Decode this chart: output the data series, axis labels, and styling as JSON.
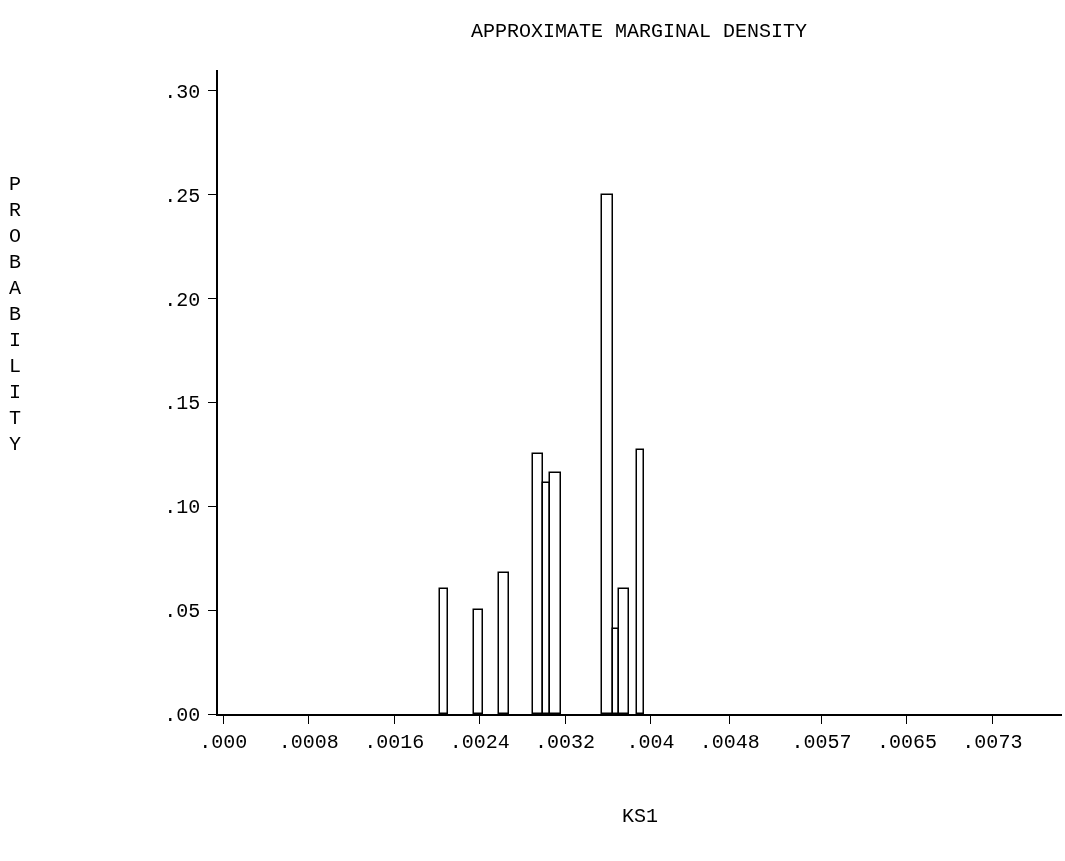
{
  "chart_data": {
    "type": "histogram",
    "title": "APPROXIMATE MARGINAL DENSITY",
    "xlabel": "KS1",
    "ylabel": "PROBABILITY",
    "bins": [
      0.00205,
      0.00213,
      0.00238,
      0.00246,
      0.00261,
      0.00271,
      0.00294,
      0.00303,
      0.0031,
      0.0032,
      0.00359,
      0.00369,
      0.00375,
      0.00385,
      0.00392,
      0.00399
    ],
    "values": [
      0.06,
      null,
      0.05,
      null,
      0.068,
      null,
      0.125,
      0.111,
      0.116,
      null,
      0.25,
      0.041,
      0.06,
      null,
      0.127
    ],
    "color": "#ffffff",
    "xlim": [
      -5e-05,
      0.00795
    ],
    "ylim": [
      0,
      0.31
    ],
    "xticks": [
      {
        "value": 0,
        "label": ".000"
      },
      {
        "value": 0.00081,
        "label": ".0008"
      },
      {
        "value": 0.00162,
        "label": ".0016"
      },
      {
        "value": 0.00243,
        "label": ".0024"
      },
      {
        "value": 0.00324,
        "label": ".0032"
      },
      {
        "value": 0.00405,
        "label": ".004"
      },
      {
        "value": 0.0048,
        "label": ".0048"
      },
      {
        "value": 0.00567,
        "label": ".0057"
      },
      {
        "value": 0.00648,
        "label": ".0065"
      },
      {
        "value": 0.00729,
        "label": ".0073"
      }
    ],
    "yticks": [
      {
        "value": 0,
        "label": ".00"
      },
      {
        "value": 0.05,
        "label": ".05"
      },
      {
        "value": 0.1,
        "label": ".10"
      },
      {
        "value": 0.15,
        "label": ".15"
      },
      {
        "value": 0.2,
        "label": ".20"
      },
      {
        "value": 0.25,
        "label": ".25"
      },
      {
        "value": 0.3,
        "label": ".30"
      }
    ]
  }
}
